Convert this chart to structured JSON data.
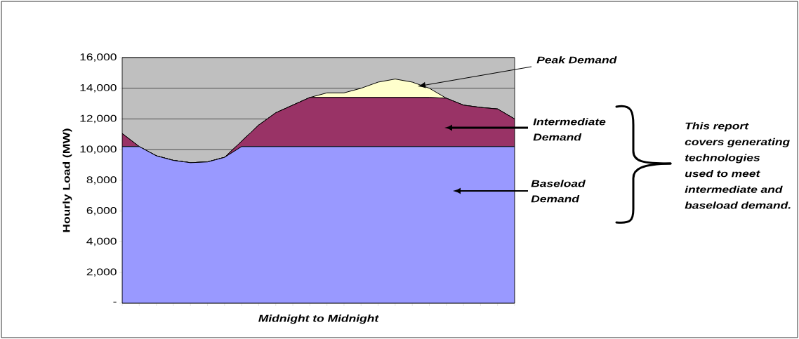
{
  "chart_data": {
    "type": "area",
    "stacked": true,
    "categories": [
      null,
      null,
      null,
      null,
      null,
      null,
      null,
      null,
      null,
      null,
      null,
      null,
      null,
      null,
      null,
      null,
      null,
      null,
      null,
      null,
      null,
      null,
      null,
      null
    ],
    "series": [
      {
        "name": "Baseload Demand",
        "color": "#9999ff",
        "values": [
          10200,
          10200,
          9600,
          9300,
          9150,
          9200,
          9500,
          10200,
          10200,
          10200,
          10200,
          10200,
          10200,
          10200,
          10200,
          10200,
          10200,
          10200,
          10200,
          10200,
          10200,
          10200,
          10200,
          10200
        ]
      },
      {
        "name": "Intermediate Demand",
        "color": "#993366",
        "values": [
          850,
          0,
          0,
          0,
          0,
          0,
          0,
          350,
          1400,
          2200,
          2700,
          3200,
          3200,
          3200,
          3200,
          3200,
          3200,
          3200,
          3200,
          3150,
          2700,
          2550,
          2450,
          1800
        ]
      },
      {
        "name": "Peak Demand",
        "color": "#ffffcc",
        "values": [
          0,
          0,
          0,
          0,
          0,
          0,
          0,
          0,
          0,
          0,
          0,
          0,
          300,
          300,
          600,
          1000,
          1200,
          1000,
          600,
          0,
          0,
          0,
          0,
          0
        ]
      }
    ],
    "ylim": [
      0,
      16000
    ],
    "yticks": [
      {
        "value": 0,
        "label": "-"
      },
      {
        "value": 2000,
        "label": "2,000"
      },
      {
        "value": 4000,
        "label": "4,000"
      },
      {
        "value": 6000,
        "label": "6,000"
      },
      {
        "value": 8000,
        "label": "8,000"
      },
      {
        "value": 10000,
        "label": "10,000"
      },
      {
        "value": 12000,
        "label": "12,000"
      },
      {
        "value": 14000,
        "label": "14,000"
      },
      {
        "value": 16000,
        "label": "16,000"
      }
    ],
    "xlabel": "Midnight to Midnight",
    "ylabel": "Hourly Load (MW)",
    "grid": "y",
    "tick_labels": "y",
    "annotations": [
      "This report covers generating technologies used to meet intermediate and baseload demand."
    ]
  }
}
